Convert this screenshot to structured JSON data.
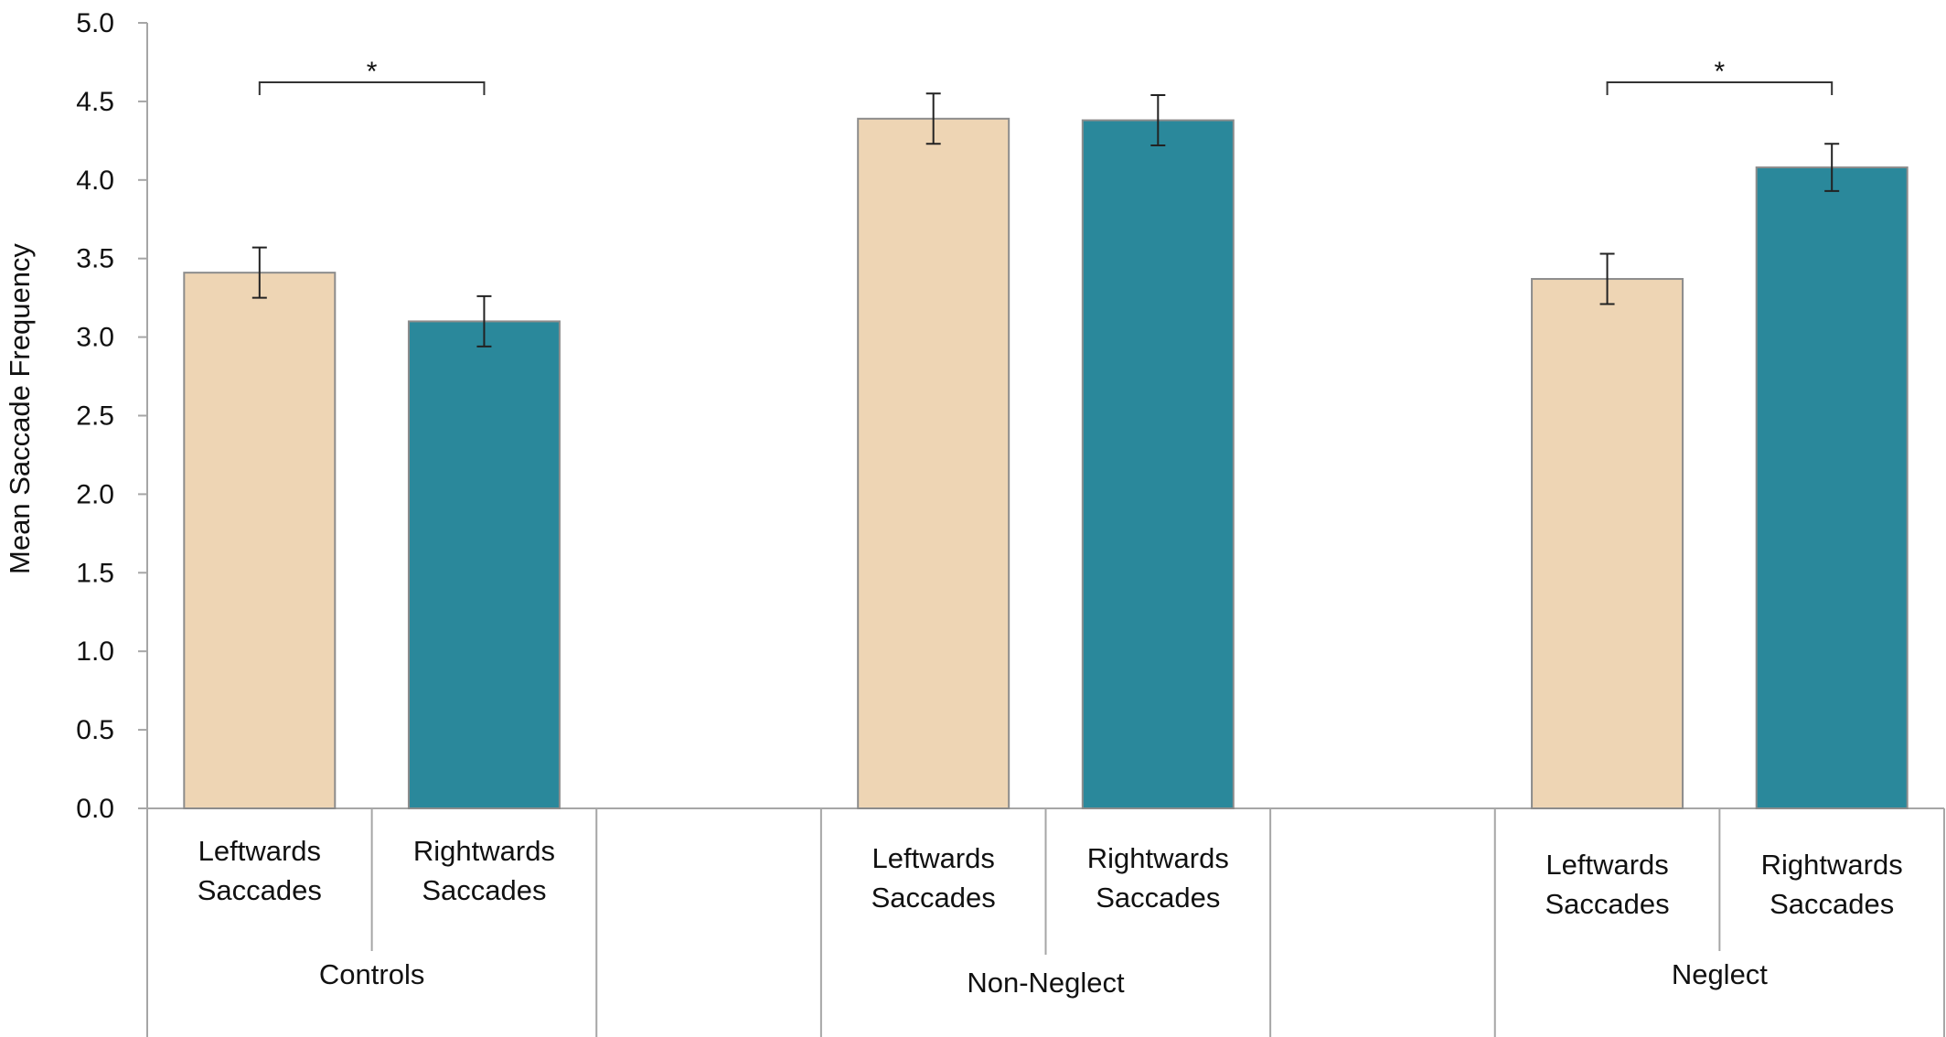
{
  "chart_data": {
    "type": "bar",
    "title": "",
    "ylabel": "Mean Saccade Frequency",
    "xlabel": "",
    "ylim": [
      0,
      5.0
    ],
    "yticks": [
      "0.0",
      "0.5",
      "1.0",
      "1.5",
      "2.0",
      "2.5",
      "3.0",
      "3.5",
      "4.0",
      "4.5",
      "5.0"
    ],
    "grid": false,
    "colors": {
      "leftwards": "#EED5B4",
      "rightwards": "#2A889B",
      "axis": "#A6A6A6",
      "error": "#222222"
    },
    "groups": [
      {
        "name": "Controls",
        "bars": [
          {
            "label_line1": "Leftwards",
            "label_line2": "Saccades",
            "value": 3.41,
            "error": 0.16,
            "kind": "leftwards"
          },
          {
            "label_line1": "Rightwards",
            "label_line2": "Saccades",
            "value": 3.1,
            "error": 0.16,
            "kind": "rightwards"
          }
        ],
        "significance": "*"
      },
      {
        "name": "Non-Neglect",
        "bars": [
          {
            "label_line1": "Leftwards",
            "label_line2": "Saccades",
            "value": 4.39,
            "error": 0.16,
            "kind": "leftwards"
          },
          {
            "label_line1": "Rightwards",
            "label_line2": "Saccades",
            "value": 4.38,
            "error": 0.16,
            "kind": "rightwards"
          }
        ],
        "significance": ""
      },
      {
        "name": "Neglect",
        "bars": [
          {
            "label_line1": "Leftwards",
            "label_line2": "Saccades",
            "value": 3.37,
            "error": 0.16,
            "kind": "leftwards"
          },
          {
            "label_line1": "Rightwards",
            "label_line2": "Saccades",
            "value": 4.08,
            "error": 0.15,
            "kind": "rightwards"
          }
        ],
        "significance": "*"
      }
    ]
  }
}
